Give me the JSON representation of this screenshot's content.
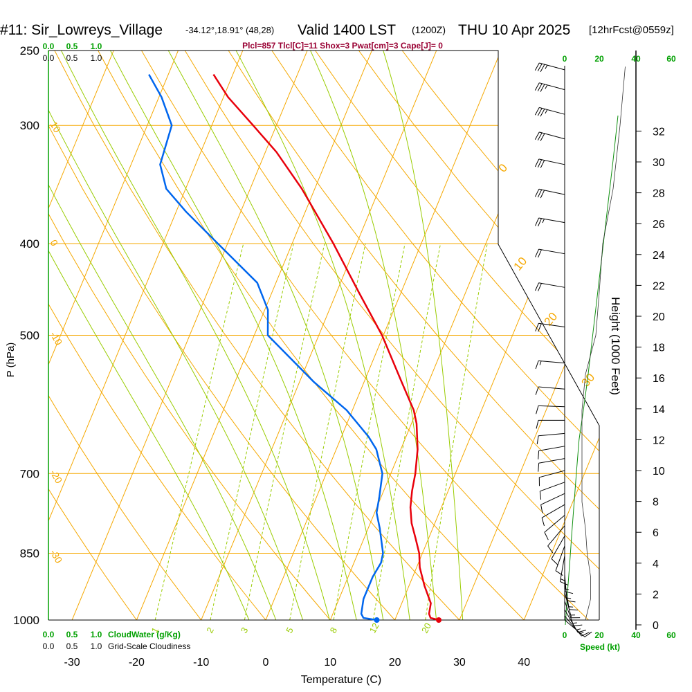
{
  "header": {
    "station": "#11: Sir_Lowreys_Village",
    "coords": "-34.12°,18.91° (48,28)",
    "valid": "Valid 1400 LST",
    "utc": "(1200Z)",
    "date": "THU 10 Apr 2025",
    "forecast": "[12hrFcst@0559z]"
  },
  "indices": "Plcl=857 Tlcl[C]=11 Shox=3 Pwat[cm]=3 Cape[J]= 0",
  "colors": {
    "isotherm": "#f5a800",
    "dry_adiabat": "#f5a800",
    "moist_adiabat": "#99cc00",
    "mixing_ratio": "#99cc00",
    "temperature": "#e8000b",
    "dewpoint": "#0066ee",
    "height_curve": "#109010",
    "green_text": "#00a000",
    "indices_text": "#990033"
  },
  "chart_data": {
    "type": "skew-t",
    "xlabel": "Temperature (C)",
    "ylabel": "P (hPa)",
    "right_label": "Height (1000 Feet)",
    "x_ticks": [
      -30,
      -20,
      -10,
      0,
      10,
      20,
      30,
      40
    ],
    "x_tick_labels": [
      "-30",
      "-20",
      "-10",
      "0",
      "10",
      "20",
      "30",
      "40"
    ],
    "pressure_ticks": [
      250,
      300,
      400,
      500,
      700,
      850,
      1000
    ],
    "pressure_tick_labels": [
      "250",
      "300",
      "400",
      "500",
      "700",
      "850",
      "1000"
    ],
    "height_ticks": [
      0,
      2,
      4,
      6,
      8,
      10,
      12,
      14,
      16,
      18,
      20,
      22,
      24,
      26,
      28,
      30,
      32
    ],
    "height_tick_labels": [
      "0",
      "2",
      "4",
      "6",
      "8",
      "10",
      "12",
      "14",
      "16",
      "18",
      "20",
      "22",
      "24",
      "26",
      "28",
      "30",
      "32"
    ],
    "temperature_profile": {
      "name": "Temperature",
      "points": [
        [
          1000,
          26.8
        ],
        [
          995,
          25.4
        ],
        [
          985,
          24.9
        ],
        [
          960,
          24.5
        ],
        [
          920,
          22.4
        ],
        [
          880,
          20.5
        ],
        [
          850,
          19.5
        ],
        [
          820,
          18.0
        ],
        [
          790,
          16.4
        ],
        [
          760,
          15.2
        ],
        [
          730,
          14.4
        ],
        [
          700,
          13.8
        ],
        [
          660,
          12.6
        ],
        [
          620,
          10.8
        ],
        [
          600,
          9.5
        ],
        [
          560,
          5.8
        ],
        [
          500,
          -0.2
        ],
        [
          450,
          -6.6
        ],
        [
          400,
          -13.6
        ],
        [
          350,
          -22.0
        ],
        [
          320,
          -28.3
        ],
        [
          300,
          -33.6
        ],
        [
          280,
          -39.3
        ],
        [
          265,
          -43.0
        ]
      ]
    },
    "dewpoint_profile": {
      "name": "Dewpoint",
      "points": [
        [
          1000,
          17.2
        ],
        [
          995,
          15.0
        ],
        [
          985,
          14.4
        ],
        [
          950,
          13.8
        ],
        [
          900,
          13.8
        ],
        [
          870,
          14.2
        ],
        [
          850,
          13.9
        ],
        [
          800,
          11.8
        ],
        [
          770,
          10.3
        ],
        [
          740,
          9.7
        ],
        [
          700,
          8.7
        ],
        [
          660,
          6.2
        ],
        [
          640,
          4.2
        ],
        [
          600,
          -0.9
        ],
        [
          560,
          -7.8
        ],
        [
          500,
          -17.9
        ],
        [
          470,
          -19.5
        ],
        [
          440,
          -22.9
        ],
        [
          400,
          -31.5
        ],
        [
          370,
          -38.5
        ],
        [
          350,
          -43.0
        ],
        [
          330,
          -45.5
        ],
        [
          300,
          -46.2
        ],
        [
          280,
          -49.6
        ],
        [
          265,
          -53.0
        ]
      ]
    },
    "isotherms_C": [
      -120,
      -110,
      -100,
      -90,
      -80,
      -70,
      -60,
      -50,
      -40,
      -30,
      -20,
      -10,
      0,
      10,
      20,
      30,
      40
    ],
    "dry_adiabats_C": [
      -20,
      -10,
      0,
      10,
      20,
      30,
      40,
      50,
      60,
      70,
      80,
      90,
      100,
      110
    ],
    "dry_adiabat_labels": [
      "10",
      "0",
      "-10",
      "-20",
      "-30"
    ],
    "moist_adiabats_C": [
      0,
      4,
      8,
      12,
      16,
      20,
      24,
      28,
      32
    ],
    "mixing_ratios_gkg": [
      1,
      2,
      3,
      5,
      8,
      12,
      20
    ],
    "mixing_ratio_labels": [
      "1",
      "2",
      "3",
      "5",
      "8",
      "12",
      "20"
    ],
    "right_isotherm_labels": [
      "0",
      "10",
      "20",
      "30"
    ],
    "cloud_water_axis": {
      "ticks": [
        "0.0",
        "0.5",
        "1.0"
      ],
      "label": "CloudWater (g/Kg)"
    },
    "cloudiness_axis": {
      "ticks": [
        "0.0",
        "0.5",
        "1.0"
      ],
      "label": "Grid-Scale Cloudiness"
    },
    "wind_speed_axis": {
      "ticks": [
        "0",
        "20",
        "40",
        "60"
      ],
      "label": "Speed (kt)"
    },
    "wind_barbs": [
      {
        "p": 1000,
        "dir": 130,
        "kt": 12
      },
      {
        "p": 990,
        "dir": 140,
        "kt": 14
      },
      {
        "p": 975,
        "dir": 150,
        "kt": 15
      },
      {
        "p": 955,
        "dir": 160,
        "kt": 15
      },
      {
        "p": 935,
        "dir": 165,
        "kt": 16
      },
      {
        "p": 915,
        "dir": 170,
        "kt": 15
      },
      {
        "p": 895,
        "dir": 175,
        "kt": 14
      },
      {
        "p": 875,
        "dir": 180,
        "kt": 14
      },
      {
        "p": 855,
        "dir": 190,
        "kt": 13
      },
      {
        "p": 835,
        "dir": 200,
        "kt": 12
      },
      {
        "p": 815,
        "dir": 210,
        "kt": 12
      },
      {
        "p": 795,
        "dir": 220,
        "kt": 12
      },
      {
        "p": 775,
        "dir": 230,
        "kt": 11
      },
      {
        "p": 755,
        "dir": 240,
        "kt": 10
      },
      {
        "p": 735,
        "dir": 245,
        "kt": 10
      },
      {
        "p": 715,
        "dir": 250,
        "kt": 10
      },
      {
        "p": 695,
        "dir": 255,
        "kt": 10
      },
      {
        "p": 675,
        "dir": 260,
        "kt": 10
      },
      {
        "p": 655,
        "dir": 260,
        "kt": 10
      },
      {
        "p": 635,
        "dir": 265,
        "kt": 10
      },
      {
        "p": 615,
        "dir": 270,
        "kt": 10
      },
      {
        "p": 595,
        "dir": 272,
        "kt": 10
      },
      {
        "p": 570,
        "dir": 275,
        "kt": 12
      },
      {
        "p": 535,
        "dir": 275,
        "kt": 15
      },
      {
        "p": 490,
        "dir": 278,
        "kt": 18
      },
      {
        "p": 445,
        "dir": 280,
        "kt": 20
      },
      {
        "p": 410,
        "dir": 280,
        "kt": 22
      },
      {
        "p": 380,
        "dir": 280,
        "kt": 25
      },
      {
        "p": 355,
        "dir": 282,
        "kt": 28
      },
      {
        "p": 330,
        "dir": 282,
        "kt": 30
      },
      {
        "p": 310,
        "dir": 285,
        "kt": 32
      },
      {
        "p": 292,
        "dir": 285,
        "kt": 35
      },
      {
        "p": 275,
        "dir": 285,
        "kt": 35
      },
      {
        "p": 262,
        "dir": 285,
        "kt": 35
      }
    ],
    "wind_speed_profile": [
      [
        1000,
        12
      ],
      [
        950,
        15
      ],
      [
        900,
        15
      ],
      [
        850,
        13
      ],
      [
        800,
        12
      ],
      [
        750,
        10
      ],
      [
        700,
        10
      ],
      [
        650,
        10
      ],
      [
        600,
        10
      ],
      [
        550,
        12
      ],
      [
        500,
        18
      ],
      [
        450,
        20
      ],
      [
        400,
        22
      ],
      [
        350,
        28
      ],
      [
        300,
        32
      ],
      [
        260,
        35
      ]
    ],
    "height_curve": [
      [
        0,
        0.4
      ],
      [
        2,
        1.5
      ],
      [
        4,
        2.8
      ],
      [
        6,
        4.0
      ],
      [
        8,
        5.3
      ],
      [
        10,
        6.6
      ],
      [
        12,
        8.0
      ],
      [
        14,
        10.5
      ],
      [
        16,
        12.8
      ],
      [
        18,
        14.8
      ],
      [
        20,
        16.8
      ],
      [
        22,
        18.8
      ],
      [
        24,
        20.8
      ],
      [
        26,
        22.8
      ],
      [
        28,
        24.8
      ],
      [
        30,
        26.8
      ],
      [
        32,
        28.7
      ],
      [
        33,
        29.6
      ]
    ]
  }
}
